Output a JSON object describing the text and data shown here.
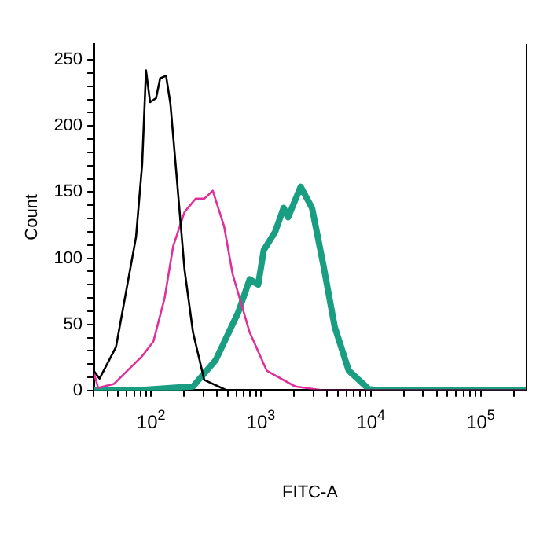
{
  "chart_data": {
    "type": "line",
    "xlabel": "FITC-A",
    "ylabel": "Count",
    "log": "x",
    "grid": false,
    "legend": false,
    "marker": "none",
    "line_style": "solid",
    "xlim": [
      30,
      262144
    ],
    "ylim": [
      0,
      262
    ],
    "xticks": [
      {
        "value": 30,
        "label": null
      },
      {
        "value": 40,
        "label": null
      },
      {
        "value": 50,
        "label": null
      },
      {
        "value": 60,
        "label": null
      },
      {
        "value": 70,
        "label": null
      },
      {
        "value": 80,
        "label": null
      },
      {
        "value": 90,
        "label": null
      },
      {
        "value": 100,
        "label": "10$^{2}$"
      },
      {
        "value": 200,
        "label": null
      },
      {
        "value": 300,
        "label": null
      },
      {
        "value": 400,
        "label": null
      },
      {
        "value": 500,
        "label": null
      },
      {
        "value": 600,
        "label": null
      },
      {
        "value": 700,
        "label": null
      },
      {
        "value": 800,
        "label": null
      },
      {
        "value": 900,
        "label": null
      },
      {
        "value": 1000,
        "label": "10$^{3}$"
      },
      {
        "value": 2000,
        "label": null
      },
      {
        "value": 3000,
        "label": null
      },
      {
        "value": 4000,
        "label": null
      },
      {
        "value": 5000,
        "label": null
      },
      {
        "value": 6000,
        "label": null
      },
      {
        "value": 7000,
        "label": null
      },
      {
        "value": 8000,
        "label": null
      },
      {
        "value": 9000,
        "label": null
      },
      {
        "value": 10000,
        "label": "10$^{4}$"
      },
      {
        "value": 20000,
        "label": null
      },
      {
        "value": 30000,
        "label": null
      },
      {
        "value": 40000,
        "label": null
      },
      {
        "value": 50000,
        "label": null
      },
      {
        "value": 60000,
        "label": null
      },
      {
        "value": 70000,
        "label": null
      },
      {
        "value": 80000,
        "label": null
      },
      {
        "value": 90000,
        "label": null
      },
      {
        "value": 100000,
        "label": "10$^{5}$"
      },
      {
        "value": 200000,
        "label": null
      }
    ],
    "yticks": [
      0,
      {
        "value": 10,
        "label": null
      },
      {
        "value": 20,
        "label": null
      },
      {
        "value": 30,
        "label": null
      },
      {
        "value": 40,
        "label": null
      },
      50,
      {
        "value": 60,
        "label": null
      },
      {
        "value": 70,
        "label": null
      },
      {
        "value": 80,
        "label": null
      },
      {
        "value": 90,
        "label": null
      },
      100,
      {
        "value": 110,
        "label": null
      },
      {
        "value": 120,
        "label": null
      },
      {
        "value": 130,
        "label": null
      },
      {
        "value": 140,
        "label": null
      },
      150,
      {
        "value": 160,
        "label": null
      },
      {
        "value": 170,
        "label": null
      },
      {
        "value": 180,
        "label": null
      },
      {
        "value": 190,
        "label": null
      },
      200,
      {
        "value": 210,
        "label": null
      },
      {
        "value": 220,
        "label": null
      },
      {
        "value": 230,
        "label": null
      },
      {
        "value": 240,
        "label": null
      },
      250
    ],
    "series": [
      {
        "color": "#000000",
        "x": [
          30,
          34,
          48,
          73,
          83,
          90,
          98,
          111,
          121,
          137,
          150,
          169,
          202,
          241,
          305,
          490,
          262144
        ],
        "values": [
          15,
          9,
          33,
          116,
          171,
          242,
          218,
          221,
          236,
          238,
          217,
          167,
          91,
          44,
          8,
          0,
          0
        ]
      },
      {
        "color": "#e0309a",
        "x": [
          30,
          33,
          46,
          83,
          105,
          133,
          159,
          202,
          255,
          305,
          365,
          463,
          553,
          790,
          1130,
          2050,
          3700,
          262144
        ],
        "values": [
          14,
          2,
          5,
          26,
          37,
          70,
          109,
          135,
          145,
          145,
          151,
          124,
          88,
          44,
          15,
          3,
          0,
          0
        ]
      },
      {
        "color": "#1a9e82",
        "x": [
          30,
          73,
          241,
          388,
          622,
          790,
          945,
          1062,
          1350,
          1610,
          1770,
          2300,
          2920,
          3700,
          4700,
          6300,
          9600,
          12000,
          262144
        ],
        "values": [
          0,
          0,
          3,
          23,
          59,
          84,
          80,
          106,
          120,
          138,
          131,
          154,
          138,
          95,
          48,
          15,
          1,
          0,
          0
        ]
      }
    ]
  }
}
